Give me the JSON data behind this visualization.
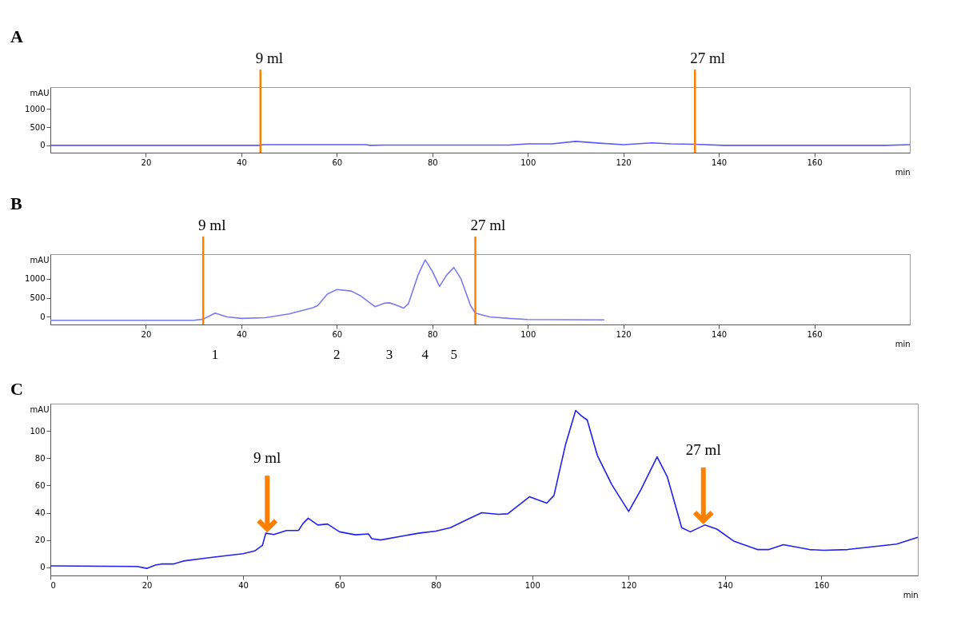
{
  "chart_data": [
    {
      "type": "line",
      "title": "A",
      "xlabel": "min",
      "ylabel": "mAU",
      "xlim": [
        0,
        180
      ],
      "xticks": [
        20,
        40,
        60,
        80,
        100,
        120,
        140,
        160
      ],
      "ylim": [
        -200,
        1600
      ],
      "yticks": [
        0,
        500,
        1000
      ],
      "series": [
        {
          "color": "#5a5aff",
          "x": [
            0,
            44,
            44.5,
            66,
            67,
            70,
            96,
            100,
            105,
            110,
            115,
            120,
            126,
            130,
            135,
            141,
            175,
            180
          ],
          "values": [
            0,
            0,
            20,
            20,
            0,
            10,
            10,
            40,
            40,
            110,
            60,
            20,
            70,
            40,
            30,
            0,
            0,
            20
          ]
        }
      ],
      "ref_lines": [
        {
          "axis": "x",
          "value": 44,
          "label": "9 ml",
          "color": "#ff8000"
        },
        {
          "axis": "x",
          "value": 135,
          "label": "27 ml",
          "color": "#ff8000"
        }
      ]
    },
    {
      "type": "line",
      "title": "B",
      "xlabel": "min",
      "ylabel": "mAU",
      "xlim": [
        0,
        180
      ],
      "xticks": [
        20,
        40,
        60,
        80,
        100,
        120,
        140,
        160
      ],
      "ylim": [
        -200,
        1650
      ],
      "yticks": [
        0,
        500,
        1000
      ],
      "series": [
        {
          "color": "#7b7bf0",
          "x": [
            0,
            30,
            32,
            34.5,
            37,
            40,
            45,
            50,
            55,
            56,
            58,
            60,
            63,
            65,
            68,
            70,
            71,
            72,
            74,
            75,
            77,
            78.5,
            80,
            81.5,
            83,
            84.5,
            86,
            88,
            89,
            92,
            96,
            100,
            116
          ],
          "values": [
            -90,
            -90,
            -60,
            100,
            0,
            -40,
            -20,
            80,
            240,
            300,
            600,
            720,
            680,
            550,
            270,
            360,
            370,
            330,
            230,
            350,
            1100,
            1500,
            1200,
            800,
            1100,
            1300,
            1000,
            300,
            100,
            0,
            -40,
            -70,
            -80
          ]
        }
      ],
      "ref_lines": [
        {
          "axis": "x",
          "value": 32,
          "label": "9 ml",
          "color": "#ff8000"
        },
        {
          "axis": "x",
          "value": 89,
          "label": "27 ml",
          "color": "#ff8000"
        }
      ],
      "annotations": [
        "1",
        "2",
        "3",
        "4",
        "5"
      ]
    },
    {
      "type": "line",
      "title": "C",
      "xlabel": "min",
      "ylabel": "mAU",
      "xlim": [
        0,
        180
      ],
      "xticks": [
        0,
        20,
        40,
        60,
        80,
        100,
        120,
        140,
        160
      ],
      "ylim": [
        -6,
        120
      ],
      "yticks": [
        0,
        20,
        40,
        60,
        80,
        100
      ],
      "series": [
        {
          "color": "#2020f0",
          "x": [
            0,
            18,
            20,
            21.8,
            23,
            25.5,
            27.6,
            34,
            40,
            42.4,
            44,
            44.7,
            46.4,
            49,
            51.5,
            52.4,
            53.5,
            55.5,
            57.5,
            60,
            63.3,
            66,
            66.7,
            68.5,
            76.4,
            80,
            83,
            86.5,
            89.5,
            93,
            94.9,
            99.4,
            103,
            104.5,
            106.9,
            109,
            110.2,
            111.4,
            113.5,
            116.5,
            120,
            122.5,
            125.9,
            128,
            131,
            132.8,
            135.8,
            138.3,
            141.9,
            146.7,
            149.1,
            152.1,
            157.5,
            160.5,
            165.4,
            175.6,
            180
          ],
          "values": [
            1,
            0.6,
            -0.8,
            1.6,
            2.4,
            2.4,
            4.6,
            7.5,
            10,
            12,
            16,
            25,
            24,
            27,
            27,
            32,
            36,
            31,
            31.7,
            26,
            23.8,
            24.5,
            21,
            20,
            25,
            26.5,
            29,
            35,
            40,
            38.8,
            39.2,
            51.7,
            47,
            52.7,
            90,
            115,
            111,
            108,
            82,
            60.6,
            41,
            56.6,
            81,
            66.5,
            29,
            26,
            31,
            28,
            19,
            13,
            13,
            16.6,
            13,
            12.5,
            13,
            17,
            22
          ]
        }
      ],
      "annotations": [
        {
          "text": "9 ml",
          "x": 45,
          "y": 25
        },
        {
          "text": "27 ml",
          "x": 135.5,
          "y": 31
        }
      ]
    }
  ]
}
